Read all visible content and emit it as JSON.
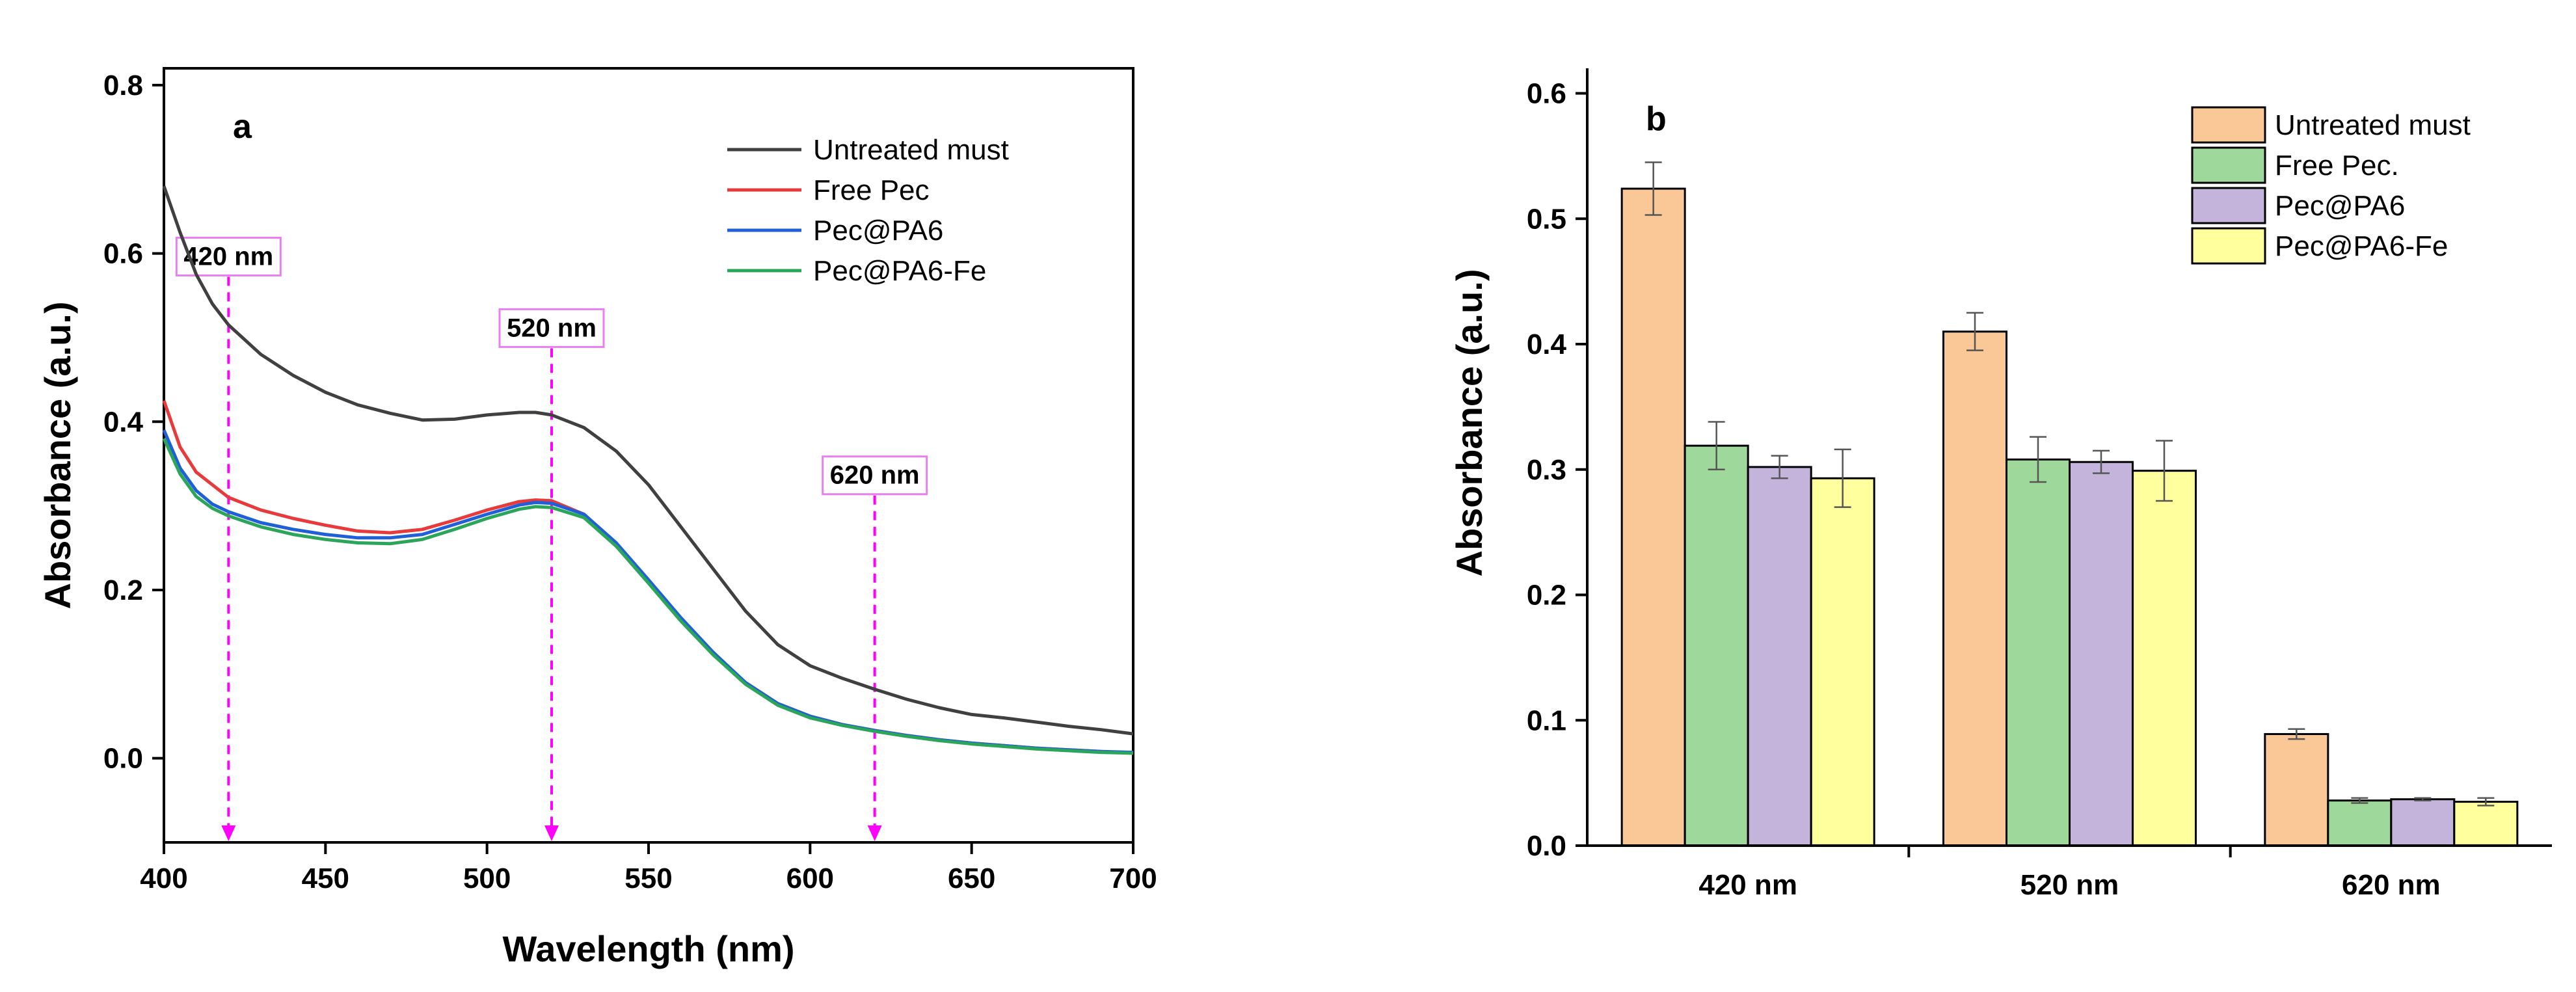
{
  "chart_data": [
    {
      "type": "line",
      "panel": "a",
      "xlabel": "Wavelength (nm)",
      "ylabel": "Absorbance (a.u.)",
      "xlim": [
        400,
        700
      ],
      "ylim": [
        -0.1,
        0.82
      ],
      "xticks": [
        400,
        450,
        500,
        550,
        600,
        650,
        700
      ],
      "xtick_labels": [
        "400",
        "450",
        "500",
        "550",
        "600",
        "650",
        "700"
      ],
      "yticks": [
        0.0,
        0.2,
        0.4,
        0.6,
        0.8
      ],
      "ytick_labels": [
        "0.0",
        "0.2",
        "0.4",
        "0.6",
        "0.8"
      ],
      "legend_position": "top-right",
      "series": [
        {
          "name": "Untreated must",
          "color": "#404040",
          "x": [
            400,
            405,
            410,
            415,
            420,
            430,
            440,
            450,
            460,
            470,
            480,
            490,
            500,
            510,
            515,
            520,
            530,
            540,
            550,
            560,
            570,
            580,
            590,
            600,
            610,
            620,
            630,
            640,
            650,
            660,
            670,
            680,
            690,
            700
          ],
          "y": [
            0.68,
            0.625,
            0.575,
            0.54,
            0.515,
            0.48,
            0.455,
            0.435,
            0.42,
            0.41,
            0.402,
            0.403,
            0.408,
            0.411,
            0.411,
            0.408,
            0.393,
            0.365,
            0.325,
            0.275,
            0.225,
            0.175,
            0.135,
            0.11,
            0.095,
            0.082,
            0.07,
            0.06,
            0.052,
            0.048,
            0.043,
            0.038,
            0.034,
            0.029
          ]
        },
        {
          "name": "Free Pec",
          "color": "#e83a3a",
          "x": [
            400,
            405,
            410,
            415,
            420,
            430,
            440,
            450,
            460,
            470,
            480,
            490,
            500,
            510,
            515,
            520,
            530,
            540,
            550,
            560,
            570,
            580,
            590,
            600,
            610,
            620,
            630,
            640,
            650,
            660,
            670,
            680,
            690,
            700
          ],
          "y": [
            0.425,
            0.37,
            0.34,
            0.325,
            0.31,
            0.295,
            0.285,
            0.277,
            0.27,
            0.268,
            0.272,
            0.283,
            0.295,
            0.305,
            0.307,
            0.306,
            0.29,
            0.255,
            0.21,
            0.165,
            0.125,
            0.09,
            0.065,
            0.05,
            0.04,
            0.033,
            0.027,
            0.022,
            0.018,
            0.015,
            0.012,
            0.01,
            0.008,
            0.006
          ]
        },
        {
          "name": "Pec@PA6",
          "color": "#1f5fd8",
          "x": [
            400,
            405,
            410,
            415,
            420,
            430,
            440,
            450,
            460,
            470,
            480,
            490,
            500,
            510,
            515,
            520,
            530,
            540,
            550,
            560,
            570,
            580,
            590,
            600,
            610,
            620,
            630,
            640,
            650,
            660,
            670,
            680,
            690,
            700
          ],
          "y": [
            0.39,
            0.345,
            0.318,
            0.302,
            0.293,
            0.28,
            0.272,
            0.266,
            0.262,
            0.262,
            0.266,
            0.278,
            0.29,
            0.301,
            0.304,
            0.303,
            0.29,
            0.256,
            0.212,
            0.167,
            0.126,
            0.09,
            0.065,
            0.05,
            0.04,
            0.033,
            0.027,
            0.022,
            0.018,
            0.015,
            0.012,
            0.01,
            0.008,
            0.007
          ]
        },
        {
          "name": "Pec@PA6-Fe",
          "color": "#2aa55a",
          "x": [
            400,
            405,
            410,
            415,
            420,
            430,
            440,
            450,
            460,
            470,
            480,
            490,
            500,
            510,
            515,
            520,
            530,
            540,
            550,
            560,
            570,
            580,
            590,
            600,
            610,
            620,
            630,
            640,
            650,
            660,
            670,
            680,
            690,
            700
          ],
          "y": [
            0.38,
            0.338,
            0.311,
            0.297,
            0.288,
            0.275,
            0.266,
            0.26,
            0.256,
            0.255,
            0.26,
            0.272,
            0.285,
            0.296,
            0.299,
            0.298,
            0.286,
            0.252,
            0.208,
            0.163,
            0.123,
            0.088,
            0.063,
            0.048,
            0.039,
            0.032,
            0.026,
            0.021,
            0.017,
            0.014,
            0.011,
            0.009,
            0.007,
            0.006
          ]
        }
      ],
      "annotations": [
        {
          "label": "420 nm",
          "x": 420,
          "y_label": 0.58
        },
        {
          "label": "520 nm",
          "x": 520,
          "y_label": 0.495
        },
        {
          "label": "620 nm",
          "x": 620,
          "y_label": 0.32
        }
      ]
    },
    {
      "type": "bar",
      "panel": "b",
      "xlabel": "",
      "ylabel": "Absorbance (a.u.)",
      "ylim": [
        0,
        0.62
      ],
      "yticks": [
        0.0,
        0.1,
        0.2,
        0.3,
        0.4,
        0.5,
        0.6
      ],
      "ytick_labels": [
        "0.0",
        "0.1",
        "0.2",
        "0.3",
        "0.4",
        "0.5",
        "0.6"
      ],
      "categories": [
        "420 nm",
        "520 nm",
        "620 nm"
      ],
      "legend_position": "top-right",
      "series": [
        {
          "name": "Untreated must",
          "color": "#fac896",
          "values": [
            0.524,
            0.41,
            0.089
          ],
          "errors": [
            0.021,
            0.015,
            0.004
          ]
        },
        {
          "name": "Free Pec.",
          "color": "#9ed89a",
          "values": [
            0.319,
            0.308,
            0.036
          ],
          "errors": [
            0.019,
            0.018,
            0.002
          ]
        },
        {
          "name": "Pec@PA6",
          "color": "#c4b3db",
          "values": [
            0.302,
            0.306,
            0.037
          ],
          "errors": [
            0.009,
            0.009,
            0.001
          ]
        },
        {
          "name": "Pec@PA6-Fe",
          "color": "#ffff9e",
          "values": [
            0.293,
            0.299,
            0.035
          ],
          "errors": [
            0.023,
            0.024,
            0.003
          ]
        }
      ]
    }
  ]
}
